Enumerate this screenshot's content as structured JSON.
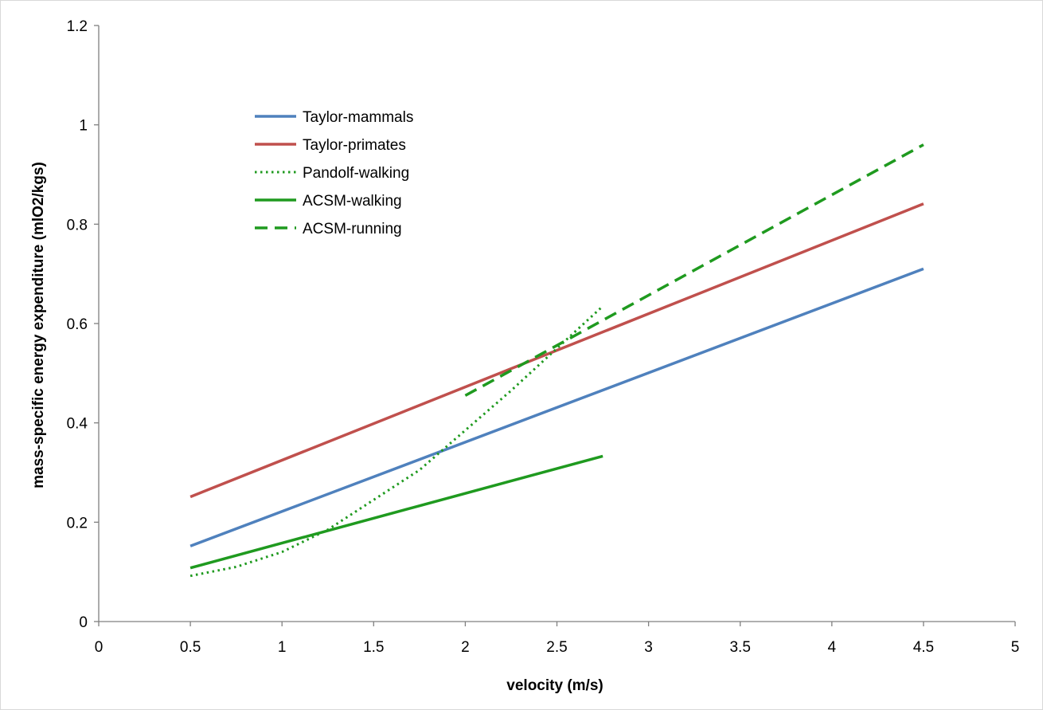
{
  "chart_data": {
    "type": "line",
    "title": "",
    "xlabel": "velocity (m/s)",
    "ylabel": "mass-specific energy expenditure (mlO2/kgs)",
    "xlim": [
      0,
      5
    ],
    "ylim": [
      0,
      1.2
    ],
    "x_ticks": [
      "0",
      "0.5",
      "1",
      "1.5",
      "2",
      "2.5",
      "3",
      "3.5",
      "4",
      "4.5",
      "5"
    ],
    "y_ticks": [
      "0",
      "0.2",
      "0.4",
      "0.6",
      "0.8",
      "1",
      "1.2"
    ],
    "grid": false,
    "legend": "top-left",
    "series": [
      {
        "name": "Taylor-mammals",
        "color": "#4f81bd",
        "style": "solid",
        "x": [
          0.5,
          4.5
        ],
        "y": [
          0.152,
          0.71
        ]
      },
      {
        "name": "Taylor-primates",
        "color": "#c0504d",
        "style": "solid",
        "x": [
          0.5,
          4.5
        ],
        "y": [
          0.251,
          0.841
        ]
      },
      {
        "name": "Pandolf-walking",
        "color": "#1f9a1f",
        "style": "dotted",
        "x": [
          0.5,
          0.75,
          1.0,
          1.25,
          1.5,
          1.75,
          2.0,
          2.25,
          2.5,
          2.75
        ],
        "y": [
          0.092,
          0.11,
          0.14,
          0.185,
          0.245,
          0.305,
          0.385,
          0.465,
          0.55,
          0.635
        ]
      },
      {
        "name": "ACSM-walking",
        "color": "#1f9a1f",
        "style": "solid",
        "x": [
          0.5,
          2.75
        ],
        "y": [
          0.108,
          0.333
        ]
      },
      {
        "name": "ACSM-running",
        "color": "#1f9a1f",
        "style": "dashed",
        "x": [
          2.0,
          4.5
        ],
        "y": [
          0.455,
          0.96
        ]
      }
    ]
  }
}
